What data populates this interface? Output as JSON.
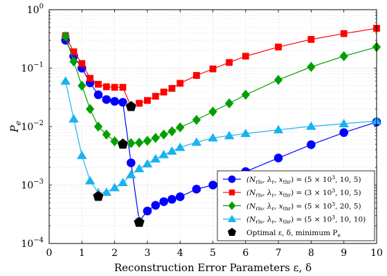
{
  "chart_data": {
    "type": "line",
    "xlabel": "Reconstruction Error Parameters ε, δ",
    "ylabel": "P_e",
    "xlim": [
      0,
      10
    ],
    "ylim": [
      0.0001,
      1
    ],
    "yscale": "log",
    "grid": true,
    "legend_position": "bottom-right",
    "x_ticks": [
      "0",
      "1",
      "2",
      "3",
      "4",
      "5",
      "6",
      "7",
      "8",
      "9",
      "10"
    ],
    "y_ticks": [
      {
        "base": "10",
        "exp": "0",
        "value": 1
      },
      {
        "base": "10",
        "exp": "−1",
        "value": 0.1
      },
      {
        "base": "10",
        "exp": "−2",
        "value": 0.01
      },
      {
        "base": "10",
        "exp": "−3",
        "value": 0.001
      },
      {
        "base": "10",
        "exp": "−4",
        "value": 0.0001
      }
    ],
    "series": [
      {
        "name": "(N_rls, λ_r, x_thr) = (5 × 10^3, 10, 5)",
        "color": "#0000ff",
        "marker": "circle",
        "x": [
          0.5,
          0.75,
          1,
          1.25,
          1.5,
          1.75,
          2,
          2.25,
          2.5,
          2.75,
          3,
          3.25,
          3.5,
          3.75,
          4,
          4.5,
          5,
          5.5,
          6,
          7,
          8,
          9,
          10
        ],
        "y": [
          0.3,
          0.16,
          0.1,
          0.056,
          0.035,
          0.029,
          0.027,
          0.026,
          0.0024,
          0.00024,
          0.00036,
          0.00045,
          0.00052,
          0.00057,
          0.00063,
          0.00085,
          0.001,
          0.0013,
          0.0017,
          0.0029,
          0.0049,
          0.0079,
          0.012
        ]
      },
      {
        "name": "(N_rls, λ_r, x_thr) = (3 × 10^3, 10, 5)",
        "color": "#ff0000",
        "marker": "square",
        "x": [
          0.5,
          0.75,
          1,
          1.25,
          1.5,
          1.75,
          2,
          2.25,
          2.5,
          2.75,
          3,
          3.25,
          3.5,
          3.75,
          4,
          4.5,
          5,
          5.5,
          6,
          7,
          8,
          9,
          10
        ],
        "y": [
          0.36,
          0.19,
          0.12,
          0.067,
          0.053,
          0.048,
          0.047,
          0.047,
          0.022,
          0.025,
          0.028,
          0.033,
          0.039,
          0.045,
          0.055,
          0.075,
          0.097,
          0.125,
          0.16,
          0.23,
          0.31,
          0.39,
          0.48
        ]
      },
      {
        "name": "(N_rls, λ_r, x_thr) = (5 × 10^3, 20, 5)",
        "color": "#00a000",
        "marker": "diamond",
        "x": [
          0.5,
          0.75,
          1,
          1.25,
          1.5,
          1.75,
          2,
          2.25,
          2.5,
          2.75,
          3,
          3.25,
          3.5,
          3.75,
          4,
          4.5,
          5,
          5.5,
          6,
          7,
          8,
          9,
          10
        ],
        "y": [
          0.35,
          0.13,
          0.05,
          0.02,
          0.01,
          0.0073,
          0.0056,
          0.0053,
          0.0052,
          0.0053,
          0.0057,
          0.0064,
          0.0073,
          0.0083,
          0.0097,
          0.013,
          0.018,
          0.025,
          0.035,
          0.063,
          0.105,
          0.16,
          0.23
        ]
      },
      {
        "name": "(N_rls, λ_r, x_thr) = (5 × 10^3, 10, 10)",
        "color": "#1ab2f0",
        "marker": "triangle",
        "x": [
          0.5,
          0.75,
          1,
          1.25,
          1.5,
          1.75,
          2,
          2.25,
          2.5,
          2.75,
          3,
          3.25,
          3.5,
          3.75,
          4,
          4.5,
          5,
          5.5,
          6,
          7,
          8,
          9,
          10
        ],
        "y": [
          0.06,
          0.0135,
          0.0032,
          0.00118,
          0.00074,
          0.00075,
          0.0009,
          0.0011,
          0.0015,
          0.0019,
          0.0023,
          0.0028,
          0.0033,
          0.0038,
          0.0044,
          0.0054,
          0.0064,
          0.007,
          0.0076,
          0.0088,
          0.0101,
          0.0112,
          0.0125
        ]
      }
    ],
    "optimal_points": {
      "name": "Optimal ε, δ, minimum P_e",
      "color": "#000000",
      "marker": "pentagon",
      "x": [
        1.5,
        2.25,
        2.5,
        2.75
      ],
      "y": [
        0.00064,
        0.005,
        0.022,
        0.00023
      ]
    },
    "legend": [
      {
        "pre": "(N",
        "sub1": "rls",
        "mid1": ", λ",
        "sub2": "r",
        "mid2": ", x",
        "sub3": "thr",
        "mid3": ") = (",
        "a": "5 × 10",
        "sup": "3",
        "tail": ", 10, 5)"
      },
      {
        "pre": "(N",
        "sub1": "rls",
        "mid1": ", λ",
        "sub2": "r",
        "mid2": ", x",
        "sub3": "thr",
        "mid3": ") = (",
        "a": "3 × 10",
        "sup": "3",
        "tail": ", 10, 5)"
      },
      {
        "pre": "(N",
        "sub1": "rls",
        "mid1": ", λ",
        "sub2": "r",
        "mid2": ", x",
        "sub3": "thr",
        "mid3": ") = (",
        "a": "5 × 10",
        "sup": "3",
        "tail": ", 20, 5)"
      },
      {
        "pre": "(N",
        "sub1": "rls",
        "mid1": ", λ",
        "sub2": "r",
        "mid2": ", x",
        "sub3": "thr",
        "mid3": ") = (",
        "a": "5 × 10",
        "sup": "3",
        "tail": ", 10, 10)"
      },
      {
        "pre": "Optimal ε, δ, minimum P",
        "sub1": "e"
      }
    ]
  }
}
